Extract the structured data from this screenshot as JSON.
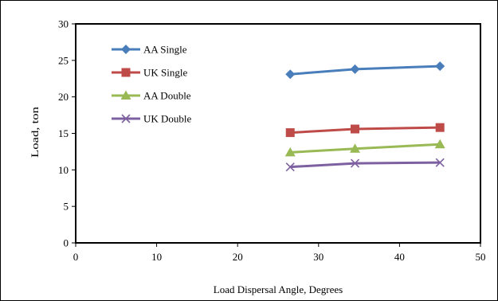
{
  "chart_data": {
    "type": "line",
    "title": "",
    "xlabel": "Load Dispersal Angle,  Degrees",
    "ylabel": "Load, ton",
    "xlim": [
      0,
      50
    ],
    "ylim": [
      0,
      30
    ],
    "x_ticks": [
      0,
      10,
      20,
      30,
      40,
      50
    ],
    "y_ticks": [
      0,
      5,
      10,
      15,
      20,
      25,
      30
    ],
    "grid": false,
    "legend_position": "top-left",
    "x": [
      26.5,
      34.5,
      45
    ],
    "series": [
      {
        "name": "AA Single",
        "values": [
          23.1,
          23.8,
          24.2
        ],
        "color": "#4A7EBB",
        "marker": "diamond"
      },
      {
        "name": "UK Single",
        "values": [
          15.1,
          15.6,
          15.8
        ],
        "color": "#BE4B48",
        "marker": "square"
      },
      {
        "name": "AA Double",
        "values": [
          12.4,
          12.9,
          13.5
        ],
        "color": "#98B954",
        "marker": "triangle"
      },
      {
        "name": "UK Double",
        "values": [
          10.4,
          10.9,
          11.0
        ],
        "color": "#7D60A0",
        "marker": "x"
      }
    ]
  }
}
